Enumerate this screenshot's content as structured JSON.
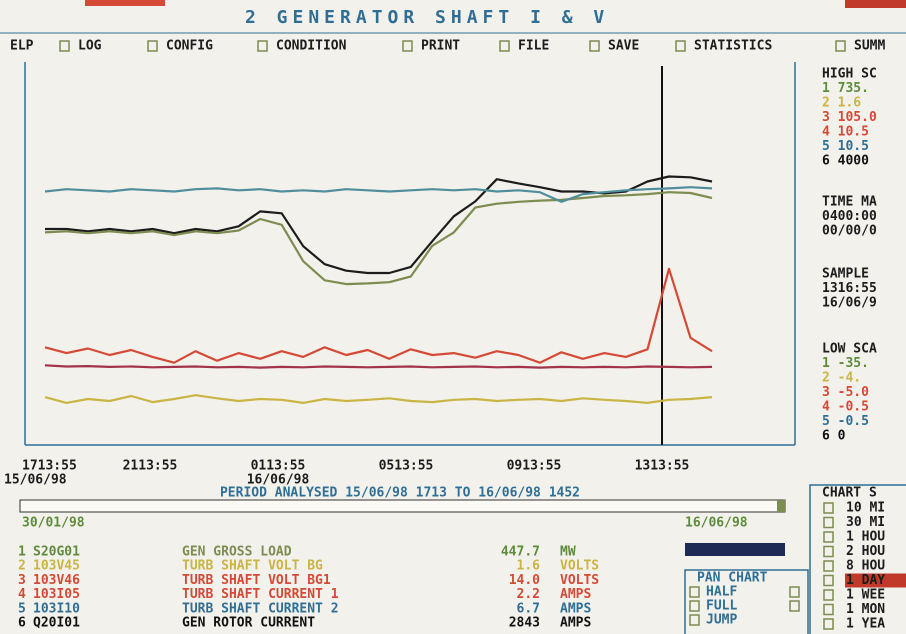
{
  "header": {
    "title": "2 GENERATOR SHAFT I & V"
  },
  "menu": {
    "items": [
      "ELP",
      "LOG",
      "CONFIG",
      "CONDITION",
      "PRINT",
      "FILE",
      "SAVE",
      "STATISTICS",
      "SUMM"
    ]
  },
  "side_panel": {
    "high_scale": {
      "title": "HIGH SC",
      "rows": [
        "1 735.",
        "2 1.6",
        "3 105.0",
        "4 10.5",
        "5 10.5",
        "6 4000"
      ]
    },
    "time_mark": {
      "title": "TIME MA",
      "lines": [
        "0400:00",
        "00/00/0"
      ]
    },
    "sample": {
      "title": "SAMPLE",
      "lines": [
        "1316:55",
        "16/06/9"
      ]
    },
    "low_scale": {
      "title": "LOW SCA",
      "rows": [
        "1 -35.",
        "2 -4.",
        "3 -5.0",
        "4 -0.5",
        "5 -0.5",
        "6 0"
      ]
    }
  },
  "chart_data": {
    "type": "line",
    "xtick_labels": [
      "1713:55",
      "2113:55",
      "0113:55",
      "0513:55",
      "0913:55",
      "1313:55"
    ],
    "xtick_dates": [
      "15/06/98",
      null,
      "16/06/98",
      null,
      null,
      null
    ],
    "ylim": [
      0,
      100
    ],
    "series": [
      {
        "name": "GEN ROTOR CURRENT",
        "color": "#1c1c1c",
        "values": [
          56.4,
          56.4,
          55.8,
          56.4,
          55.8,
          56.4,
          55.3,
          56.4,
          55.8,
          57.1,
          61.0,
          60.5,
          51.9,
          47.2,
          45.5,
          44.9,
          44.9,
          46.5,
          53.2,
          59.7,
          63.6,
          69.4,
          68.3,
          67.3,
          66.2,
          66.2,
          65.7,
          66.2,
          68.8,
          70.1,
          69.9,
          68.8
        ]
      },
      {
        "name": "GEN GROSS LOAD",
        "color": "#7d8c50",
        "values": [
          55.5,
          55.8,
          55.3,
          55.8,
          55.3,
          55.8,
          54.8,
          55.8,
          55.3,
          56.0,
          59.0,
          57.5,
          48.0,
          43.0,
          42.0,
          42.2,
          42.5,
          44.0,
          52.0,
          55.5,
          62.0,
          63.0,
          63.5,
          63.8,
          64.0,
          64.5,
          65.0,
          65.2,
          65.5,
          66.0,
          65.8,
          64.5
        ]
      },
      {
        "name": "TURB SHAFT CURRENT 2",
        "color": "#4f8e9c",
        "values": [
          66.2,
          66.8,
          66.5,
          66.2,
          66.8,
          66.5,
          66.2,
          66.8,
          67.0,
          66.5,
          66.8,
          66.2,
          66.5,
          66.2,
          66.8,
          66.5,
          66.2,
          66.5,
          66.8,
          66.5,
          66.8,
          66.2,
          66.5,
          66.0,
          63.5,
          65.5,
          66.0,
          66.5,
          66.8,
          67.0,
          67.3,
          67.0
        ]
      },
      {
        "name": "TURB SHAFT VOLT BG1",
        "color": "#d44a36",
        "values": [
          25.5,
          24.0,
          25.2,
          23.5,
          24.8,
          23.0,
          21.5,
          24.5,
          22.0,
          24.0,
          22.5,
          24.5,
          23.0,
          25.5,
          23.5,
          24.8,
          22.5,
          25.0,
          23.5,
          24.0,
          22.8,
          24.5,
          23.5,
          21.5,
          24.2,
          22.5,
          24.0,
          23.0,
          25.0,
          46.0,
          28.0,
          24.5
        ]
      },
      {
        "name": "TURB SHAFT CURRENT 1",
        "color": "#a3334a",
        "values": [
          20.8,
          20.5,
          20.6,
          20.4,
          20.5,
          20.3,
          20.4,
          20.5,
          20.3,
          20.4,
          20.2,
          20.4,
          20.3,
          20.5,
          20.4,
          20.3,
          20.4,
          20.5,
          20.3,
          20.4,
          20.5,
          20.3,
          20.4,
          20.2,
          20.4,
          20.3,
          20.4,
          20.3,
          20.5,
          20.4,
          20.3,
          20.4
        ]
      },
      {
        "name": "TURB SHAFT VOLT BG",
        "color": "#c9b444",
        "values": [
          12.5,
          11.0,
          12.0,
          11.5,
          12.8,
          11.2,
          12.0,
          13.0,
          12.2,
          11.5,
          12.0,
          11.8,
          11.0,
          12.0,
          11.5,
          11.8,
          12.2,
          11.5,
          11.2,
          11.8,
          12.0,
          11.5,
          11.8,
          12.0,
          11.5,
          12.2,
          11.8,
          11.5,
          11.0,
          11.8,
          12.0,
          12.5
        ]
      }
    ]
  },
  "period": "PERIOD ANALYSED 15/06/98 1713 TO 16/06/98 1452",
  "slider": {
    "start": "30/01/98",
    "end": "16/06/98"
  },
  "table": {
    "rows": [
      [
        "1",
        "S20G01",
        "GEN GROSS LOAD",
        "447.7",
        "MW"
      ],
      [
        "2",
        "103V45",
        "TURB SHAFT VOLT BG",
        "1.6",
        "VOLTS"
      ],
      [
        "3",
        "103V46",
        "TURB SHAFT VOLT BG1",
        "14.0",
        "VOLTS"
      ],
      [
        "4",
        "103I05",
        "TURB SHAFT CURRENT 1",
        "2.2",
        "AMPS"
      ],
      [
        "5",
        "103I10",
        "TURB SHAFT CURRENT 2",
        "6.7",
        "AMPS"
      ],
      [
        "6",
        "Q20I01",
        "GEN ROTOR CURRENT",
        "2843",
        "AMPS"
      ]
    ]
  },
  "chart_span": {
    "title": "CHART S",
    "options": [
      "10 MI",
      "30 MI",
      "1 HOU",
      "2 HOU",
      "8 HOU",
      "1 DAY",
      "1 WEE",
      "1 MON",
      "1 YEA"
    ],
    "selected": 5
  },
  "pan_chart": {
    "title": "PAN CHART",
    "options": [
      "HALF",
      "FULL",
      "JUMP"
    ]
  }
}
